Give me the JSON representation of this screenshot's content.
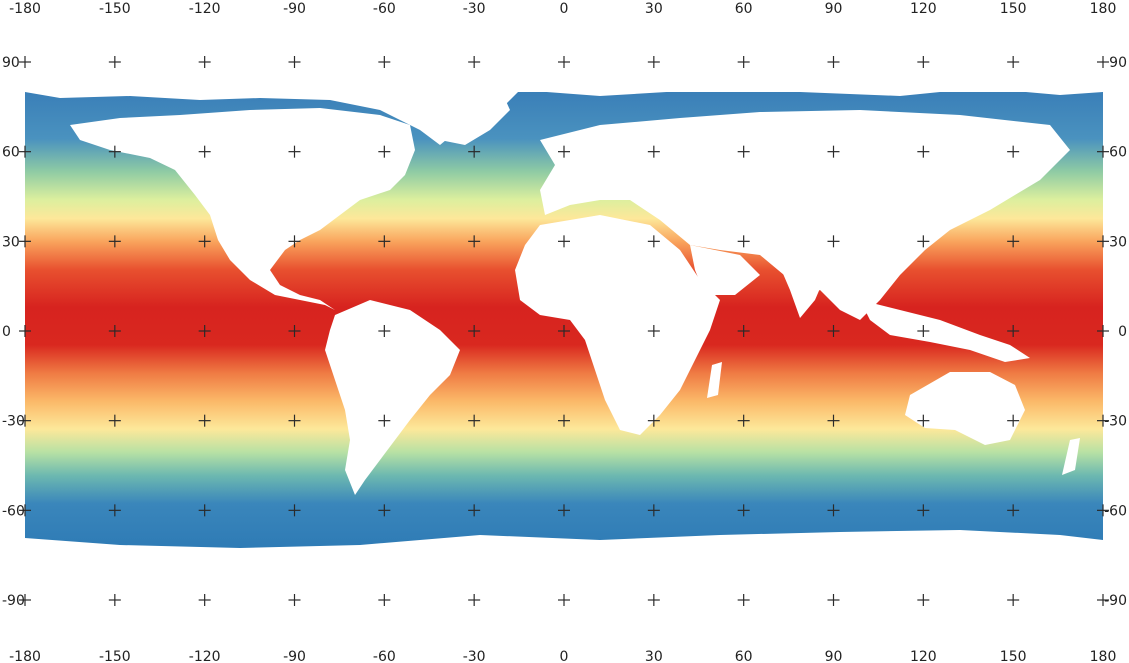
{
  "map": {
    "projection": "equirectangular",
    "extent": {
      "lon": [
        -180,
        180
      ],
      "lat": [
        -90,
        90
      ]
    },
    "grid_spacing_deg": 30,
    "colormap": [
      "#d7191c",
      "#f46d43",
      "#fdae61",
      "#fee08b",
      "#e6f598",
      "#abdda4",
      "#66c2a5",
      "#3288bd"
    ],
    "land_color": "#ffffff",
    "lon_labels": [
      "-180",
      "-150",
      "-120",
      "-90",
      "-60",
      "-30",
      "0",
      "30",
      "60",
      "90",
      "120",
      "150",
      "180"
    ],
    "lat_labels": [
      "90",
      "60",
      "30",
      "0",
      "-30",
      "-60",
      "-90"
    ]
  }
}
